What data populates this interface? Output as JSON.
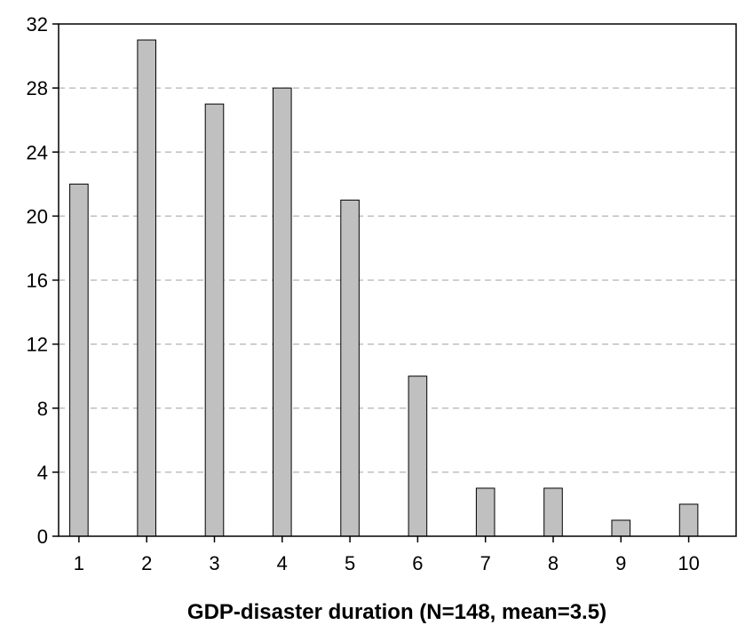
{
  "chart_data": {
    "type": "bar",
    "title": "",
    "xlabel": "GDP-disaster duration (N=148, mean=3.5)",
    "ylabel": "",
    "categories": [
      "1",
      "2",
      "3",
      "4",
      "5",
      "6",
      "7",
      "8",
      "9",
      "10"
    ],
    "values": [
      22,
      31,
      27,
      28,
      21,
      10,
      3,
      3,
      1,
      2
    ],
    "ylim": [
      0,
      32
    ],
    "yticks": [
      "0",
      "4",
      "8",
      "12",
      "16",
      "20",
      "24",
      "28",
      "32"
    ],
    "grid": true,
    "legend": "none"
  },
  "colors": {
    "bar_fill": "#c0c0c0",
    "bar_stroke": "#000000",
    "grid": "#b3b3b3",
    "axis": "#000000",
    "background": "#ffffff"
  }
}
